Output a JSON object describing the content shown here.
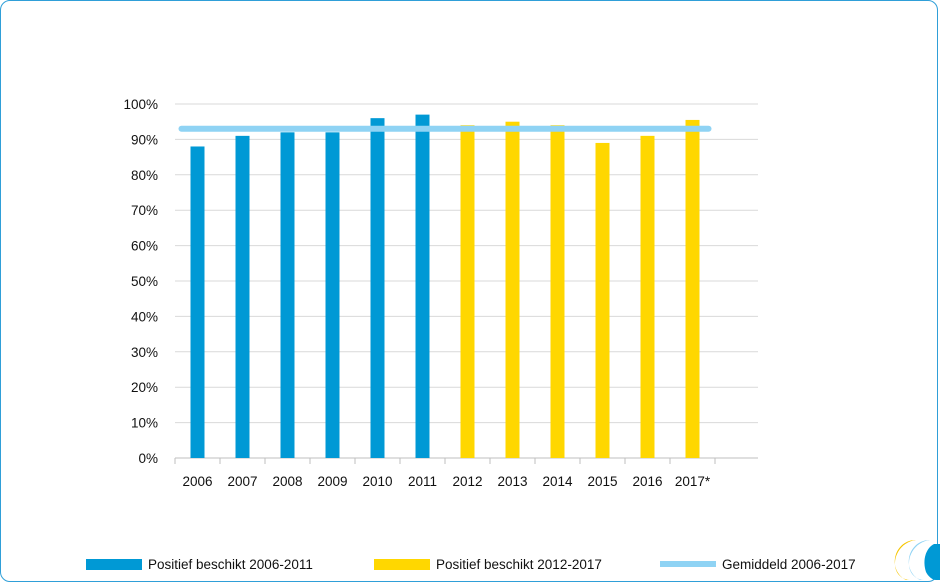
{
  "chart_data": {
    "type": "bar",
    "categories": [
      "2006",
      "2007",
      "2008",
      "2009",
      "2010",
      "2011",
      "2012",
      "2013",
      "2014",
      "2015",
      "2016",
      "2017*"
    ],
    "series": [
      {
        "name": "Positief beschikt 2006-2011",
        "color": "#0099d5",
        "values": [
          88,
          91,
          92,
          92,
          96,
          97,
          null,
          null,
          null,
          null,
          null,
          null
        ]
      },
      {
        "name": "Positief beschikt 2012-2017",
        "color": "#ffd700",
        "values": [
          null,
          null,
          null,
          null,
          null,
          null,
          94,
          95,
          94,
          89,
          91,
          95.5
        ]
      }
    ],
    "average_line": {
      "name": "Gemiddeld 2006-2017",
      "value": 93,
      "color": "#8fd3f4"
    },
    "y_ticks": [
      "0%",
      "10%",
      "20%",
      "30%",
      "40%",
      "50%",
      "60%",
      "70%",
      "80%",
      "90%",
      "100%"
    ],
    "ylim": [
      0,
      100
    ],
    "grid": true,
    "legend_position": "bottom"
  },
  "colors": {
    "frame": "#2f9fd8",
    "grid": "#d9d9d9",
    "axis": "#bfbfbf"
  },
  "logo_icon": "stylized-double-c-logo-icon"
}
